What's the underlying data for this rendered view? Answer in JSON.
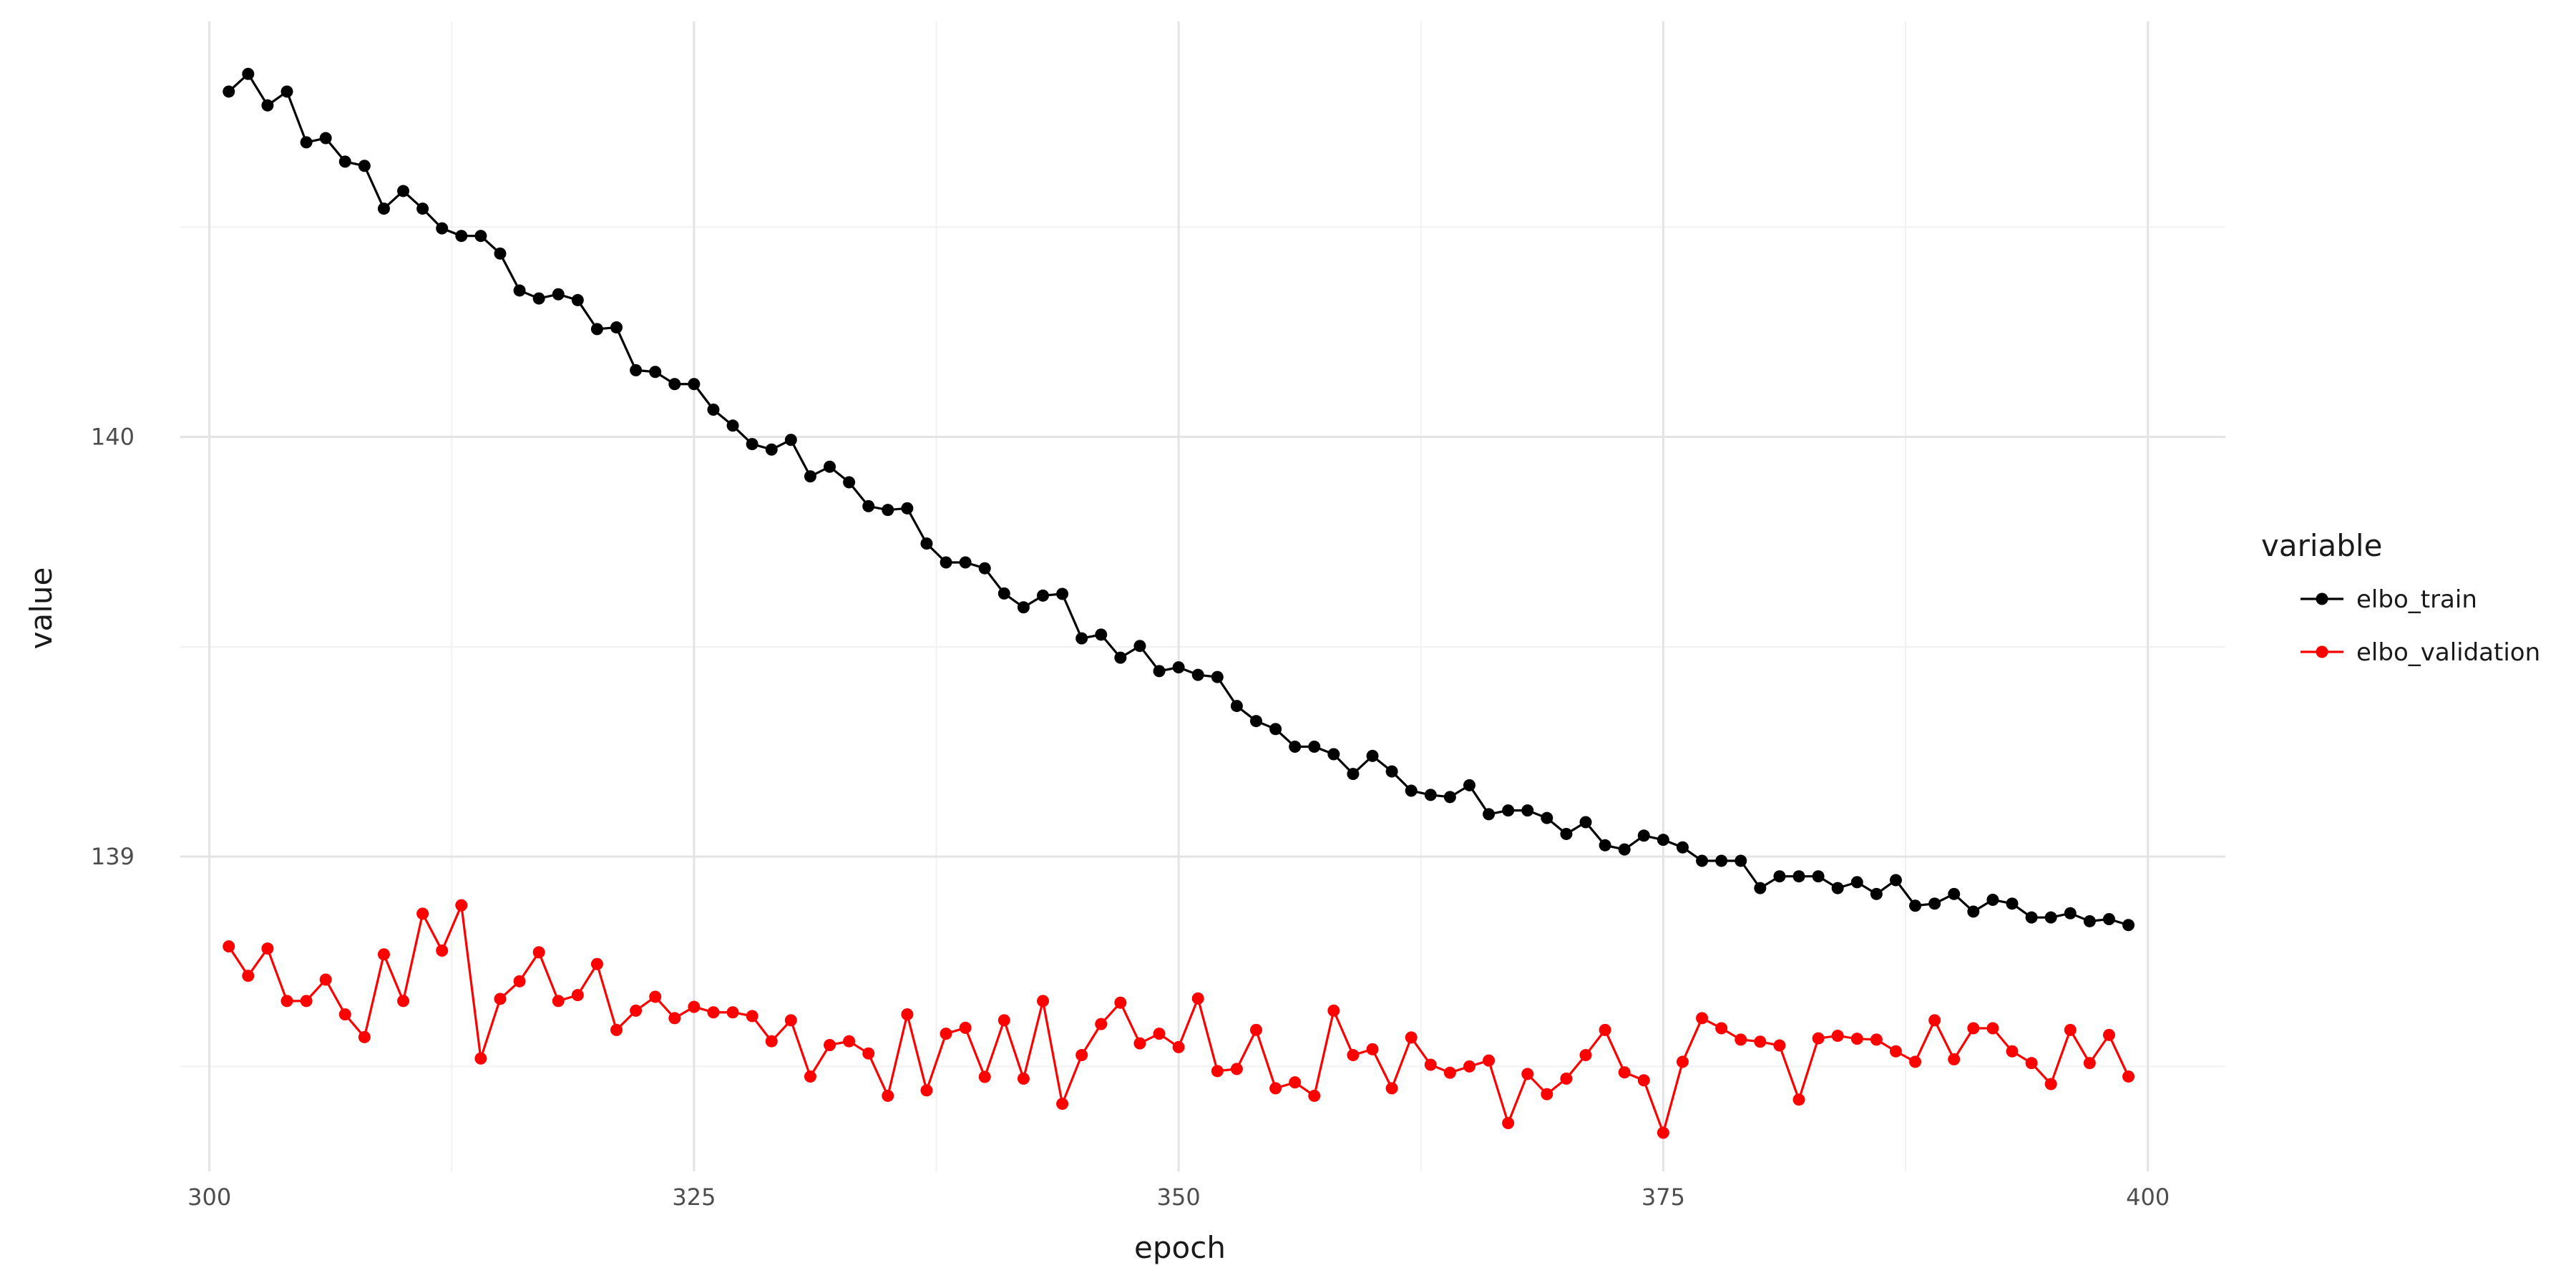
{
  "chart_data": {
    "type": "line",
    "xlabel": "epoch",
    "ylabel": "value",
    "xlim": [
      298.5,
      404.0
    ],
    "ylim": [
      138.25,
      140.99
    ],
    "x_ticks": [
      300,
      325,
      350,
      375,
      400
    ],
    "y_ticks": [
      139,
      140
    ],
    "grid": true,
    "legend": {
      "title": "variable",
      "placement": "right"
    },
    "x": [
      301,
      302,
      303,
      304,
      305,
      306,
      307,
      308,
      309,
      310,
      311,
      312,
      313,
      314,
      315,
      316,
      317,
      318,
      319,
      320,
      321,
      322,
      323,
      324,
      325,
      326,
      327,
      328,
      329,
      330,
      331,
      332,
      333,
      334,
      335,
      336,
      337,
      338,
      339,
      340,
      341,
      342,
      343,
      344,
      345,
      346,
      347,
      348,
      349,
      350,
      351,
      352,
      353,
      354,
      355,
      356,
      357,
      358,
      359,
      360,
      361,
      362,
      363,
      364,
      365,
      366,
      367,
      368,
      369,
      370,
      371,
      372,
      373,
      374,
      375,
      376,
      377,
      378,
      379,
      380,
      381,
      382,
      383,
      384,
      385,
      386,
      387,
      388,
      389,
      390,
      391,
      392,
      393,
      394,
      395,
      396,
      397,
      398,
      399
    ],
    "series": [
      {
        "name": "elbo_train",
        "color": "#000000",
        "values": [
          140.823,
          140.865,
          140.79,
          140.823,
          140.702,
          140.712,
          140.656,
          140.646,
          140.544,
          140.586,
          140.544,
          140.497,
          140.479,
          140.479,
          140.437,
          140.349,
          140.33,
          140.34,
          140.326,
          140.257,
          140.261,
          140.159,
          140.155,
          140.126,
          140.126,
          140.065,
          140.027,
          139.983,
          139.97,
          139.993,
          139.906,
          139.929,
          139.892,
          139.835,
          139.826,
          139.83,
          139.746,
          139.701,
          139.701,
          139.687,
          139.627,
          139.594,
          139.622,
          139.626,
          139.52,
          139.529,
          139.474,
          139.502,
          139.442,
          139.451,
          139.433,
          139.428,
          139.359,
          139.323,
          139.304,
          139.262,
          139.262,
          139.244,
          139.197,
          139.24,
          139.203,
          139.157,
          139.147,
          139.142,
          139.17,
          139.101,
          139.11,
          139.11,
          139.092,
          139.054,
          139.082,
          139.027,
          139.017,
          139.05,
          139.04,
          139.022,
          138.99,
          138.99,
          138.99,
          138.925,
          138.953,
          138.953,
          138.953,
          138.925,
          138.939,
          138.911,
          138.944,
          138.883,
          138.888,
          138.911,
          138.869,
          138.897,
          138.888,
          138.855,
          138.855,
          138.865,
          138.846,
          138.851,
          138.837
        ]
      },
      {
        "name": "elbo_validation",
        "color": "#ff0000",
        "values": [
          138.786,
          138.716,
          138.781,
          138.656,
          138.656,
          138.707,
          138.624,
          138.57,
          138.767,
          138.656,
          138.864,
          138.776,
          138.884,
          138.519,
          138.661,
          138.703,
          138.772,
          138.656,
          138.67,
          138.744,
          138.587,
          138.633,
          138.666,
          138.615,
          138.642,
          138.629,
          138.629,
          138.62,
          138.56,
          138.61,
          138.476,
          138.551,
          138.56,
          138.531,
          138.43,
          138.624,
          138.443,
          138.578,
          138.592,
          138.475,
          138.61,
          138.471,
          138.656,
          138.411,
          138.527,
          138.601,
          138.652,
          138.555,
          138.578,
          138.546,
          138.662,
          138.489,
          138.494,
          138.587,
          138.448,
          138.462,
          138.43,
          138.633,
          138.527,
          138.541,
          138.448,
          138.569,
          138.504,
          138.485,
          138.5,
          138.514,
          138.365,
          138.482,
          138.434,
          138.471,
          138.527,
          138.587,
          138.486,
          138.467,
          138.342,
          138.511,
          138.615,
          138.591,
          138.564,
          138.559,
          138.55,
          138.421,
          138.567,
          138.573,
          138.566,
          138.564,
          138.536,
          138.511,
          138.61,
          138.517,
          138.591,
          138.591,
          138.536,
          138.508,
          138.458,
          138.587,
          138.508,
          138.575,
          138.476
        ]
      }
    ]
  }
}
